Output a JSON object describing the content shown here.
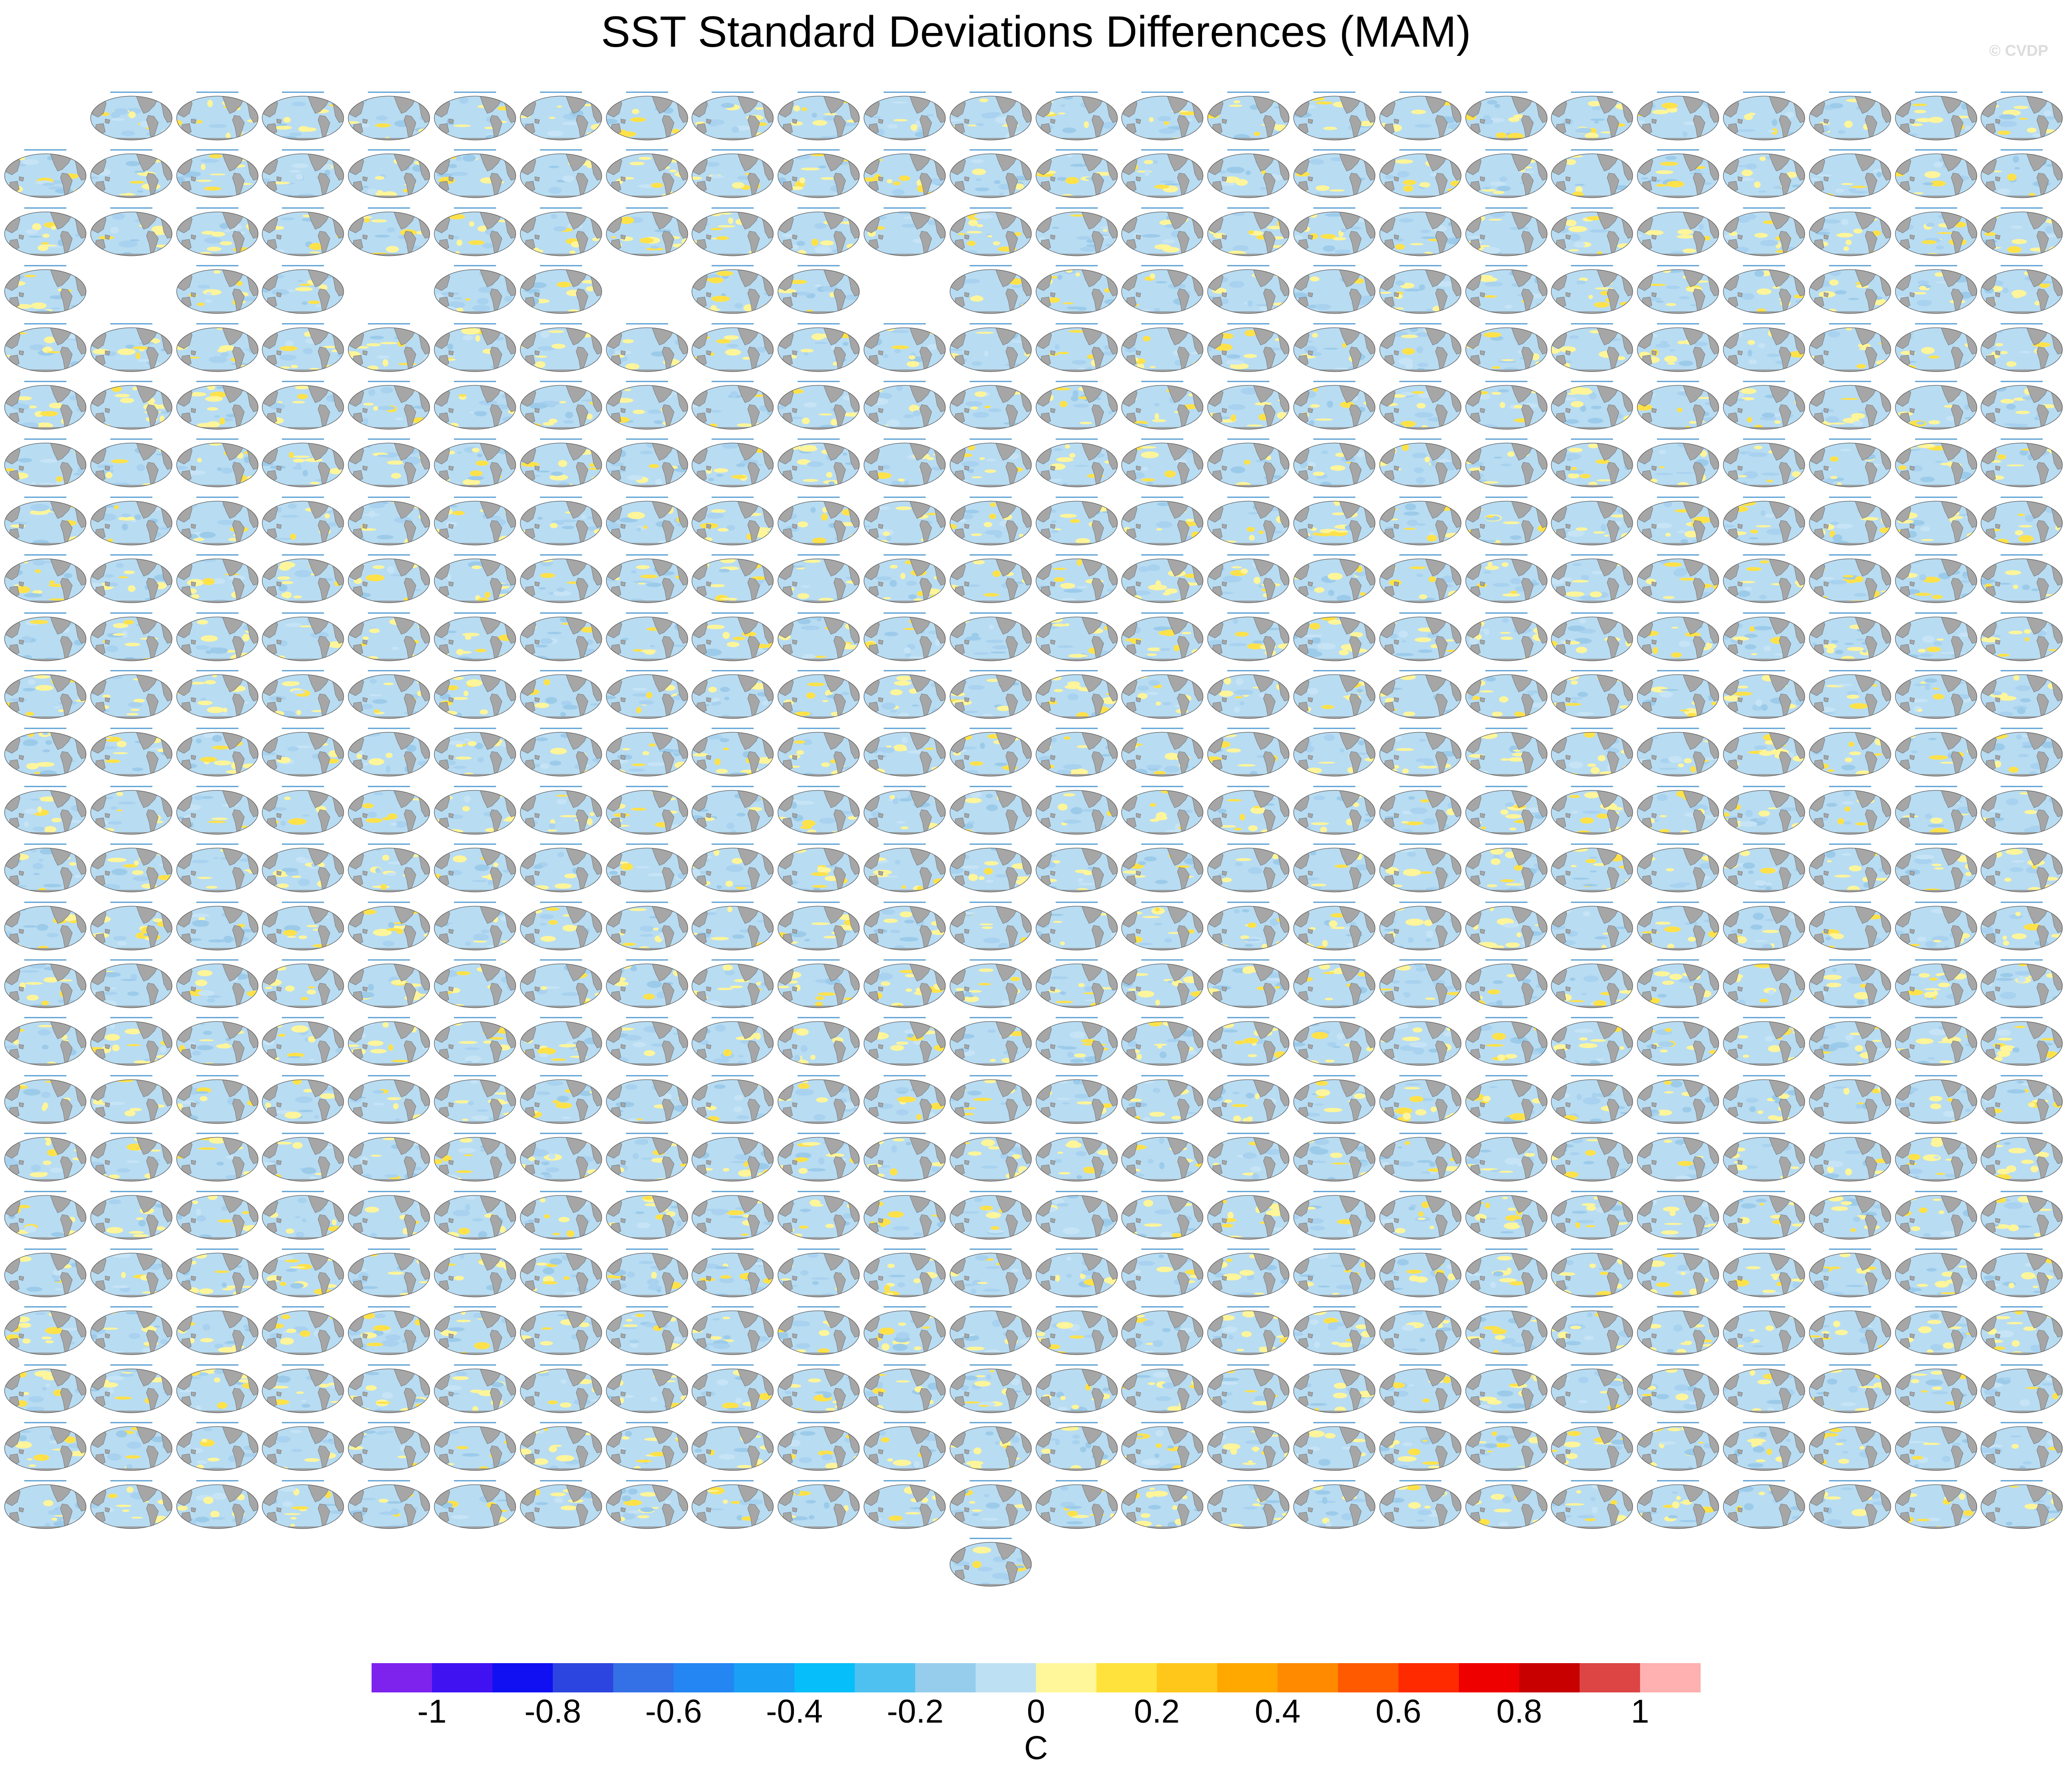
{
  "title": "SST Standard Deviations Differences (MAM)",
  "watermark": "© CVDP",
  "panels": {
    "columns": 24,
    "rows_present": [
      [
        false,
        true,
        true,
        true,
        true,
        true,
        true,
        true,
        true,
        true,
        true,
        true,
        true,
        true,
        true,
        true,
        true,
        true,
        true,
        true,
        true,
        true,
        true,
        true
      ],
      [
        true,
        true,
        true,
        true,
        true,
        true,
        true,
        true,
        true,
        true,
        true,
        true,
        true,
        true,
        true,
        true,
        true,
        true,
        true,
        true,
        true,
        true,
        true,
        true
      ],
      [
        true,
        true,
        true,
        true,
        true,
        true,
        true,
        true,
        true,
        true,
        true,
        true,
        true,
        true,
        true,
        true,
        true,
        true,
        true,
        true,
        true,
        true,
        true,
        true
      ],
      [
        true,
        false,
        true,
        true,
        false,
        true,
        true,
        false,
        true,
        true,
        false,
        true,
        true,
        true,
        true,
        true,
        true,
        true,
        true,
        true,
        true,
        true,
        true,
        true
      ],
      [
        true,
        true,
        true,
        true,
        true,
        true,
        true,
        true,
        true,
        true,
        true,
        true,
        true,
        true,
        true,
        true,
        true,
        true,
        true,
        true,
        true,
        true,
        true,
        true
      ],
      [
        true,
        true,
        true,
        true,
        true,
        true,
        true,
        true,
        true,
        true,
        true,
        true,
        true,
        true,
        true,
        true,
        true,
        true,
        true,
        true,
        true,
        true,
        true,
        true
      ],
      [
        true,
        true,
        true,
        true,
        true,
        true,
        true,
        true,
        true,
        true,
        true,
        true,
        true,
        true,
        true,
        true,
        true,
        true,
        true,
        true,
        true,
        true,
        true,
        true
      ],
      [
        true,
        true,
        true,
        true,
        true,
        true,
        true,
        true,
        true,
        true,
        true,
        true,
        true,
        true,
        true,
        true,
        true,
        true,
        true,
        true,
        true,
        true,
        true,
        true
      ],
      [
        true,
        true,
        true,
        true,
        true,
        true,
        true,
        true,
        true,
        true,
        true,
        true,
        true,
        true,
        true,
        true,
        true,
        true,
        true,
        true,
        true,
        true,
        true,
        true
      ],
      [
        true,
        true,
        true,
        true,
        true,
        true,
        true,
        true,
        true,
        true,
        true,
        true,
        true,
        true,
        true,
        true,
        true,
        true,
        true,
        true,
        true,
        true,
        true,
        true
      ],
      [
        true,
        true,
        true,
        true,
        true,
        true,
        true,
        true,
        true,
        true,
        true,
        true,
        true,
        true,
        true,
        true,
        true,
        true,
        true,
        true,
        true,
        true,
        true,
        true
      ],
      [
        true,
        true,
        true,
        true,
        true,
        true,
        true,
        true,
        true,
        true,
        true,
        true,
        true,
        true,
        true,
        true,
        true,
        true,
        true,
        true,
        true,
        true,
        true,
        true
      ],
      [
        true,
        true,
        true,
        true,
        true,
        true,
        true,
        true,
        true,
        true,
        true,
        true,
        true,
        true,
        true,
        true,
        true,
        true,
        true,
        true,
        true,
        true,
        true,
        true
      ],
      [
        true,
        true,
        true,
        true,
        true,
        true,
        true,
        true,
        true,
        true,
        true,
        true,
        true,
        true,
        true,
        true,
        true,
        true,
        true,
        true,
        true,
        true,
        true,
        true
      ],
      [
        true,
        true,
        true,
        true,
        true,
        true,
        true,
        true,
        true,
        true,
        true,
        true,
        true,
        true,
        true,
        true,
        true,
        true,
        true,
        true,
        true,
        true,
        true,
        true
      ],
      [
        true,
        true,
        true,
        true,
        true,
        true,
        true,
        true,
        true,
        true,
        true,
        true,
        true,
        true,
        true,
        true,
        true,
        true,
        true,
        true,
        true,
        true,
        true,
        true
      ],
      [
        true,
        true,
        true,
        true,
        true,
        true,
        true,
        true,
        true,
        true,
        true,
        true,
        true,
        true,
        true,
        true,
        true,
        true,
        true,
        true,
        true,
        true,
        true,
        true
      ],
      [
        true,
        true,
        true,
        true,
        true,
        true,
        true,
        true,
        true,
        true,
        true,
        true,
        true,
        true,
        true,
        true,
        true,
        true,
        true,
        true,
        true,
        true,
        true,
        true
      ],
      [
        true,
        true,
        true,
        true,
        true,
        true,
        true,
        true,
        true,
        true,
        true,
        true,
        true,
        true,
        true,
        true,
        true,
        true,
        true,
        true,
        true,
        true,
        true,
        true
      ],
      [
        true,
        true,
        true,
        true,
        true,
        true,
        true,
        true,
        true,
        true,
        true,
        true,
        true,
        true,
        true,
        true,
        true,
        true,
        true,
        true,
        true,
        true,
        true,
        true
      ],
      [
        true,
        true,
        true,
        true,
        true,
        true,
        true,
        true,
        true,
        true,
        true,
        true,
        true,
        true,
        true,
        true,
        true,
        true,
        true,
        true,
        true,
        true,
        true,
        true
      ],
      [
        true,
        true,
        true,
        true,
        true,
        true,
        true,
        true,
        true,
        true,
        true,
        true,
        true,
        true,
        true,
        true,
        true,
        true,
        true,
        true,
        true,
        true,
        true,
        true
      ],
      [
        true,
        true,
        true,
        true,
        true,
        true,
        true,
        true,
        true,
        true,
        true,
        true,
        true,
        true,
        true,
        true,
        true,
        true,
        true,
        true,
        true,
        true,
        true,
        true
      ],
      [
        true,
        true,
        true,
        true,
        true,
        true,
        true,
        true,
        true,
        true,
        true,
        true,
        true,
        true,
        true,
        true,
        true,
        true,
        true,
        true,
        true,
        true,
        true,
        true
      ],
      [
        true,
        true,
        true,
        true,
        true,
        true,
        true,
        true,
        true,
        true,
        true,
        true,
        true,
        true,
        true,
        true,
        true,
        true,
        true,
        true,
        true,
        true,
        true,
        true
      ],
      [
        false,
        false,
        false,
        false,
        false,
        false,
        false,
        false,
        false,
        false,
        false,
        true,
        false,
        false,
        false,
        false,
        false,
        false,
        false,
        false,
        false,
        false,
        false,
        false
      ]
    ],
    "ocean_colors": [
      "#b8dcf2",
      "#a8d2ef",
      "#c6e4f6",
      "#fff59a",
      "#ffe24a",
      "#9ccbea"
    ],
    "land_color": "#a6a6a6",
    "panel_label_color": "#6aa9d8"
  },
  "colorbar": {
    "colors": [
      "#7e22ee",
      "#4012f2",
      "#1010f2",
      "#2d45e0",
      "#3470e6",
      "#2386f2",
      "#1aa0f5",
      "#06bef9",
      "#4fc1f1",
      "#96cdec",
      "#bde0f3",
      "#fff79a",
      "#ffe23b",
      "#ffc71a",
      "#ffa800",
      "#ff8a00",
      "#ff5a00",
      "#ff2a00",
      "#ee0000",
      "#c80000",
      "#dd4444",
      "#ffb0b0"
    ],
    "tick_labels": [
      "-1",
      "-0.8",
      "-0.6",
      "-0.4",
      "-0.2",
      "0",
      "0.2",
      "0.4",
      "0.6",
      "0.8",
      "1"
    ],
    "units": "C"
  }
}
